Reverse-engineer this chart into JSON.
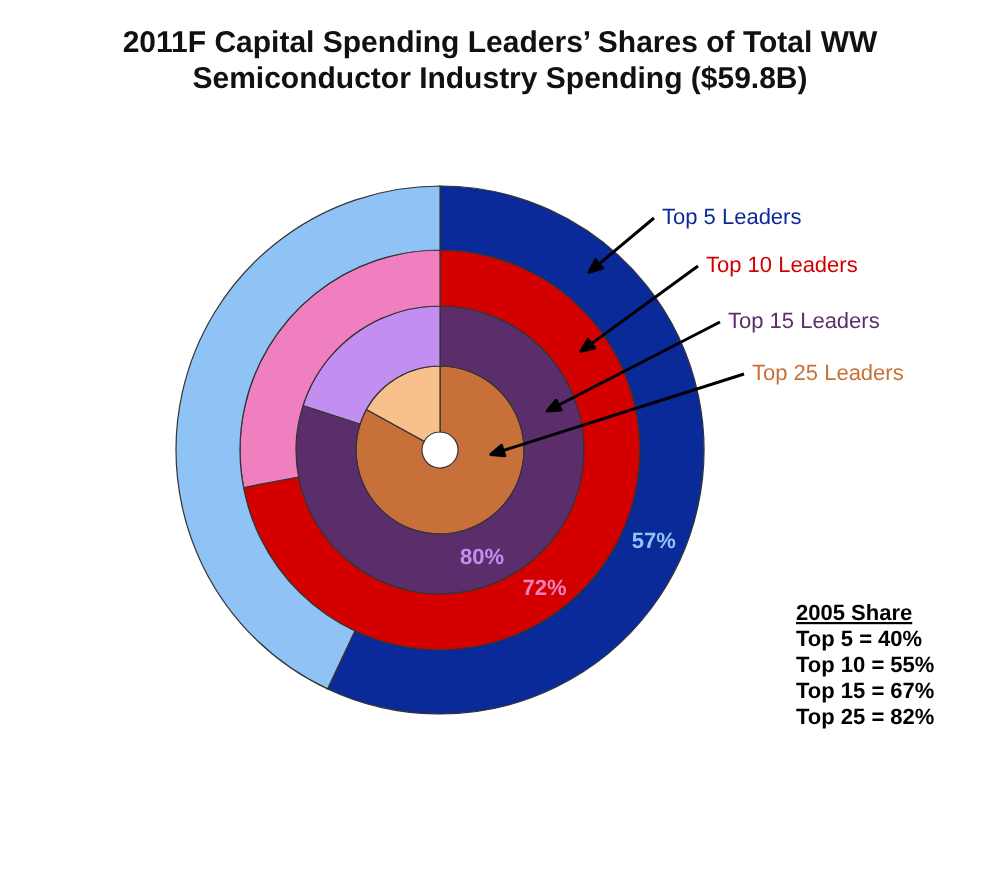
{
  "chart_data": {
    "type": "donut",
    "title": "2011F Capital Spending Leaders’ Shares of Total WW\nSemiconductor Industry Spending ($59.8B)",
    "categories": [
      null,
      null
    ],
    "series": [
      {
        "name": "Top 25 Leaders",
        "colors": [
          "#c8703a",
          "#f8c08a"
        ],
        "values": [
          83,
          17
        ],
        "value_labels": [
          null,
          null
        ]
      },
      {
        "name": "Top 15 Leaders",
        "colors": [
          "#5b2e6b",
          "#c28ff0"
        ],
        "values": [
          80,
          20
        ],
        "value_labels": [
          "80%",
          null
        ]
      },
      {
        "name": "Top 10 Leaders",
        "colors": [
          "#d40000",
          "#f07fc0"
        ],
        "values": [
          72,
          28
        ],
        "value_labels": [
          "72%",
          null
        ]
      },
      {
        "name": "Top 5 Leaders",
        "colors": [
          "#0a2a9a",
          "#8fc3f5"
        ],
        "values": [
          57,
          43
        ],
        "value_labels": [
          "57%",
          null
        ]
      }
    ],
    "annotations": [
      "2005 Share",
      "Top 5 = 40%",
      "Top 10 = 55%",
      "Top 15 = 67%",
      "Top 25 = 82%"
    ]
  }
}
